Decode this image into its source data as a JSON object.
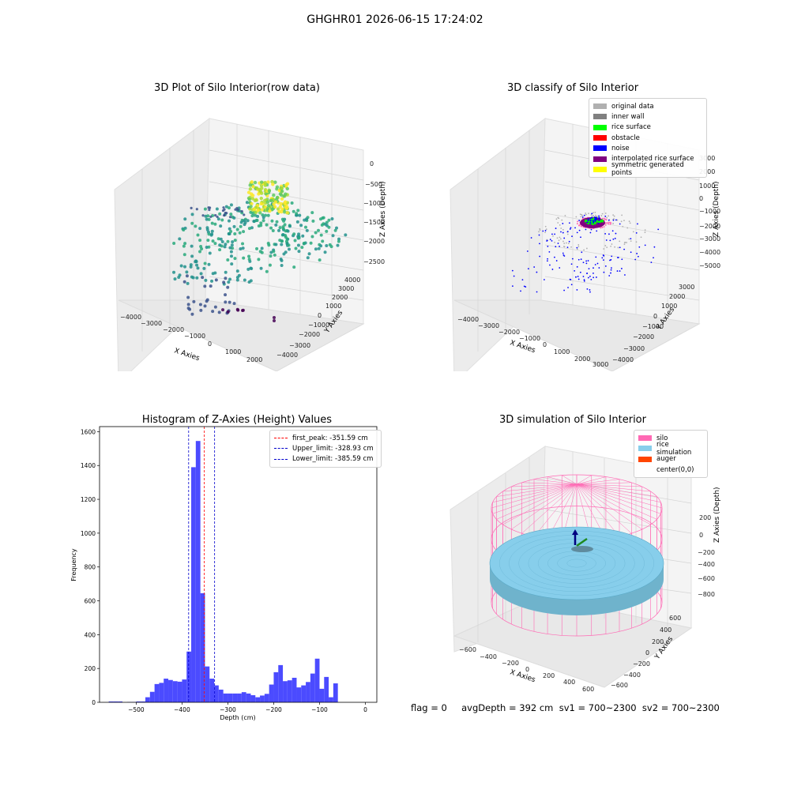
{
  "suptitle": "GHGHR01 2026-06-15 17:24:02",
  "panels": {
    "raw": {
      "title": "3D Plot of Silo Interior(row data)",
      "xlabel": "X Axies",
      "ylabel": "Y Axies",
      "zlabel": "Z Axies (Depth)",
      "xticks": [
        "−4000",
        "−3000",
        "−2000",
        "−1000",
        "0",
        "1000",
        "2000"
      ],
      "yticks": [
        "−4000",
        "−3000",
        "−2000",
        "−1000",
        "0",
        "1000",
        "2000",
        "3000",
        "4000"
      ],
      "zticks": [
        "0",
        "−500",
        "−1000",
        "−1500",
        "−2000",
        "−2500"
      ]
    },
    "classify": {
      "title": "3D classify of Silo Interior",
      "xlabel": "X Axies",
      "ylabel": "Y Axies",
      "zlabel": "Z Axies (Depth)",
      "xticks": [
        "−4000",
        "−3000",
        "−2000",
        "−1000",
        "0",
        "1000",
        "2000",
        "3000"
      ],
      "yticks": [
        "−4000",
        "−3000",
        "−2000",
        "−1000",
        "0",
        "1000",
        "2000",
        "3000"
      ],
      "zticks": [
        "3000",
        "2000",
        "1000",
        "0",
        "−1000",
        "−2000",
        "−3000",
        "−4000",
        "−5000"
      ],
      "legend": [
        {
          "label": "original data",
          "color": "#b0b0b0"
        },
        {
          "label": "inner wall",
          "color": "#808080"
        },
        {
          "label": "rice surface",
          "color": "#00ff00"
        },
        {
          "label": "obstacle",
          "color": "#ff0000"
        },
        {
          "label": "noise",
          "color": "#0000ff"
        },
        {
          "label": "interpolated rice surface",
          "color": "#800080"
        },
        {
          "label": "symmetric generated points",
          "color": "#ffff00"
        }
      ]
    },
    "simulation": {
      "title": "3D simulation of Silo Interior",
      "xlabel": "X Axies",
      "ylabel": "Y Axies",
      "zlabel": "Z Axies (Depth)",
      "xticks": [
        "−600",
        "−400",
        "−200",
        "0",
        "200",
        "400",
        "600"
      ],
      "yticks": [
        "−600",
        "−400",
        "−200",
        "0",
        "200",
        "400",
        "600"
      ],
      "zticks": [
        "200",
        "0",
        "−200",
        "−400",
        "−600",
        "−800"
      ],
      "legend": [
        {
          "label": "silo",
          "color": "#ff69b4"
        },
        {
          "label": "rice simulation",
          "color": "#87ceeb"
        },
        {
          "label": "auger",
          "color": "#ff4500"
        },
        {
          "label": "center(0,0)",
          "color": ""
        }
      ]
    }
  },
  "footer": "flag = 0     avgDepth = 392 cm  sv1 = 700~2300  sv2 = 700~2300",
  "chart_data": [
    {
      "type": "scatter",
      "title": "3D Plot of Silo Interior(row data)",
      "xlabel": "X Axies",
      "ylabel": "Y Axies",
      "zlabel": "Z Axies (Depth)",
      "xlim": [
        -4500,
        2500
      ],
      "ylim": [
        -4500,
        4500
      ],
      "zlim": [
        -2700,
        0
      ],
      "notes_colormap": "viridis by depth"
    },
    {
      "type": "scatter",
      "title": "3D classify of Silo Interior",
      "xlabel": "X Axies",
      "ylabel": "Y Axies",
      "zlabel": "Z Axies (Depth)",
      "xlim": [
        -4500,
        3000
      ],
      "ylim": [
        -4500,
        3500
      ],
      "zlim": [
        -5000,
        3000
      ],
      "legend_placement": "top-right"
    },
    {
      "type": "bar",
      "title": "Histogram of Z-Axies (Height) Values",
      "xlabel": "Depth (cm)",
      "ylabel": "Frequency",
      "xlim": [
        -580,
        25
      ],
      "ylim": [
        0,
        1630
      ],
      "xticks": [
        -500,
        -400,
        -300,
        -200,
        -100,
        0
      ],
      "yticks": [
        0,
        200,
        400,
        600,
        800,
        1000,
        1200,
        1400,
        1600
      ],
      "bin_width": 10,
      "bins": [
        {
          "x0": -560,
          "count": 5
        },
        {
          "x0": -550,
          "count": 5
        },
        {
          "x0": -540,
          "count": 5
        },
        {
          "x0": -520,
          "count": 2
        },
        {
          "x0": -510,
          "count": 2
        },
        {
          "x0": -500,
          "count": 5
        },
        {
          "x0": -490,
          "count": 5
        },
        {
          "x0": -480,
          "count": 30
        },
        {
          "x0": -470,
          "count": 62
        },
        {
          "x0": -460,
          "count": 108
        },
        {
          "x0": -450,
          "count": 115
        },
        {
          "x0": -440,
          "count": 140
        },
        {
          "x0": -430,
          "count": 132
        },
        {
          "x0": -420,
          "count": 125
        },
        {
          "x0": -410,
          "count": 122
        },
        {
          "x0": -400,
          "count": 135
        },
        {
          "x0": -390,
          "count": 300
        },
        {
          "x0": -380,
          "count": 1390
        },
        {
          "x0": -370,
          "count": 1545
        },
        {
          "x0": -360,
          "count": 645
        },
        {
          "x0": -350,
          "count": 212
        },
        {
          "x0": -340,
          "count": 140
        },
        {
          "x0": -330,
          "count": 100
        },
        {
          "x0": -320,
          "count": 75
        },
        {
          "x0": -310,
          "count": 52
        },
        {
          "x0": -300,
          "count": 52
        },
        {
          "x0": -290,
          "count": 52
        },
        {
          "x0": -280,
          "count": 52
        },
        {
          "x0": -270,
          "count": 60
        },
        {
          "x0": -260,
          "count": 52
        },
        {
          "x0": -250,
          "count": 42
        },
        {
          "x0": -240,
          "count": 30
        },
        {
          "x0": -230,
          "count": 40
        },
        {
          "x0": -220,
          "count": 50
        },
        {
          "x0": -210,
          "count": 105
        },
        {
          "x0": -200,
          "count": 178
        },
        {
          "x0": -190,
          "count": 220
        },
        {
          "x0": -180,
          "count": 125
        },
        {
          "x0": -170,
          "count": 130
        },
        {
          "x0": -160,
          "count": 145
        },
        {
          "x0": -150,
          "count": 88
        },
        {
          "x0": -140,
          "count": 100
        },
        {
          "x0": -130,
          "count": 120
        },
        {
          "x0": -120,
          "count": 170
        },
        {
          "x0": -110,
          "count": 258
        },
        {
          "x0": -100,
          "count": 80
        },
        {
          "x0": -90,
          "count": 150
        },
        {
          "x0": -80,
          "count": 30
        },
        {
          "x0": -70,
          "count": 112
        }
      ],
      "lines": [
        {
          "label": "first_peak: -351.59 cm",
          "x": -351.59,
          "color": "#ff0000"
        },
        {
          "label": "Upper_limit: -328.93 cm",
          "x": -328.93,
          "color": "#0000cc"
        },
        {
          "label": "Lower_limit: -385.59 cm",
          "x": -385.59,
          "color": "#0000cc"
        }
      ],
      "legend_placement": "top-right"
    },
    {
      "type": "scatter",
      "title": "3D simulation of Silo Interior",
      "xlabel": "X Axies",
      "ylabel": "Y Axies",
      "zlabel": "Z Axies (Depth)",
      "xlim": [
        -700,
        700
      ],
      "ylim": [
        -700,
        700
      ],
      "zlim": [
        -900,
        500
      ]
    }
  ]
}
